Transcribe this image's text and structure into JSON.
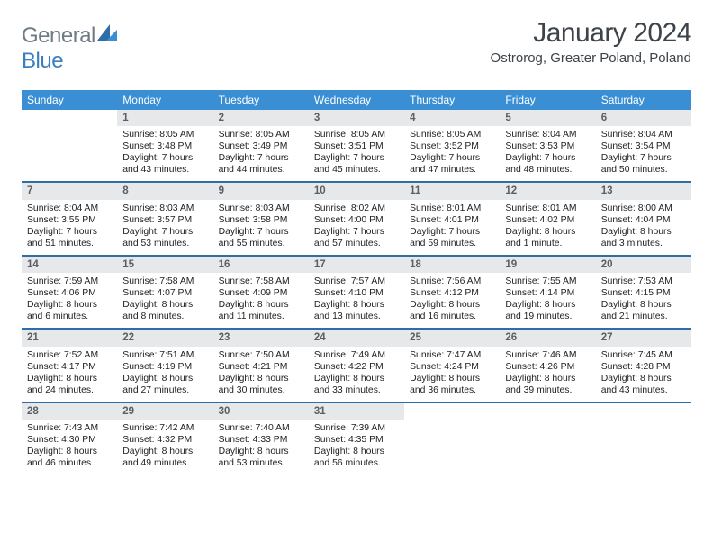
{
  "brand": {
    "part1": "General",
    "part2": "Blue"
  },
  "title": {
    "month": "January 2024",
    "location": "Ostrorog, Greater Poland, Poland"
  },
  "colors": {
    "header_bg": "#3a8fd4",
    "header_text": "#ffffff",
    "week_divider": "#2f6da8",
    "daynum_bg": "#e7e8e9",
    "daynum_text": "#5a5f63",
    "body_text": "#222222",
    "logo_gray": "#6f7b84",
    "logo_blue": "#3a7ebf"
  },
  "dow": [
    "Sunday",
    "Monday",
    "Tuesday",
    "Wednesday",
    "Thursday",
    "Friday",
    "Saturday"
  ],
  "weeks": [
    [
      {
        "n": "",
        "sr": "",
        "ss": "",
        "d1": "",
        "d2": ""
      },
      {
        "n": "1",
        "sr": "Sunrise: 8:05 AM",
        "ss": "Sunset: 3:48 PM",
        "d1": "Daylight: 7 hours",
        "d2": "and 43 minutes."
      },
      {
        "n": "2",
        "sr": "Sunrise: 8:05 AM",
        "ss": "Sunset: 3:49 PM",
        "d1": "Daylight: 7 hours",
        "d2": "and 44 minutes."
      },
      {
        "n": "3",
        "sr": "Sunrise: 8:05 AM",
        "ss": "Sunset: 3:51 PM",
        "d1": "Daylight: 7 hours",
        "d2": "and 45 minutes."
      },
      {
        "n": "4",
        "sr": "Sunrise: 8:05 AM",
        "ss": "Sunset: 3:52 PM",
        "d1": "Daylight: 7 hours",
        "d2": "and 47 minutes."
      },
      {
        "n": "5",
        "sr": "Sunrise: 8:04 AM",
        "ss": "Sunset: 3:53 PM",
        "d1": "Daylight: 7 hours",
        "d2": "and 48 minutes."
      },
      {
        "n": "6",
        "sr": "Sunrise: 8:04 AM",
        "ss": "Sunset: 3:54 PM",
        "d1": "Daylight: 7 hours",
        "d2": "and 50 minutes."
      }
    ],
    [
      {
        "n": "7",
        "sr": "Sunrise: 8:04 AM",
        "ss": "Sunset: 3:55 PM",
        "d1": "Daylight: 7 hours",
        "d2": "and 51 minutes."
      },
      {
        "n": "8",
        "sr": "Sunrise: 8:03 AM",
        "ss": "Sunset: 3:57 PM",
        "d1": "Daylight: 7 hours",
        "d2": "and 53 minutes."
      },
      {
        "n": "9",
        "sr": "Sunrise: 8:03 AM",
        "ss": "Sunset: 3:58 PM",
        "d1": "Daylight: 7 hours",
        "d2": "and 55 minutes."
      },
      {
        "n": "10",
        "sr": "Sunrise: 8:02 AM",
        "ss": "Sunset: 4:00 PM",
        "d1": "Daylight: 7 hours",
        "d2": "and 57 minutes."
      },
      {
        "n": "11",
        "sr": "Sunrise: 8:01 AM",
        "ss": "Sunset: 4:01 PM",
        "d1": "Daylight: 7 hours",
        "d2": "and 59 minutes."
      },
      {
        "n": "12",
        "sr": "Sunrise: 8:01 AM",
        "ss": "Sunset: 4:02 PM",
        "d1": "Daylight: 8 hours",
        "d2": "and 1 minute."
      },
      {
        "n": "13",
        "sr": "Sunrise: 8:00 AM",
        "ss": "Sunset: 4:04 PM",
        "d1": "Daylight: 8 hours",
        "d2": "and 3 minutes."
      }
    ],
    [
      {
        "n": "14",
        "sr": "Sunrise: 7:59 AM",
        "ss": "Sunset: 4:06 PM",
        "d1": "Daylight: 8 hours",
        "d2": "and 6 minutes."
      },
      {
        "n": "15",
        "sr": "Sunrise: 7:58 AM",
        "ss": "Sunset: 4:07 PM",
        "d1": "Daylight: 8 hours",
        "d2": "and 8 minutes."
      },
      {
        "n": "16",
        "sr": "Sunrise: 7:58 AM",
        "ss": "Sunset: 4:09 PM",
        "d1": "Daylight: 8 hours",
        "d2": "and 11 minutes."
      },
      {
        "n": "17",
        "sr": "Sunrise: 7:57 AM",
        "ss": "Sunset: 4:10 PM",
        "d1": "Daylight: 8 hours",
        "d2": "and 13 minutes."
      },
      {
        "n": "18",
        "sr": "Sunrise: 7:56 AM",
        "ss": "Sunset: 4:12 PM",
        "d1": "Daylight: 8 hours",
        "d2": "and 16 minutes."
      },
      {
        "n": "19",
        "sr": "Sunrise: 7:55 AM",
        "ss": "Sunset: 4:14 PM",
        "d1": "Daylight: 8 hours",
        "d2": "and 19 minutes."
      },
      {
        "n": "20",
        "sr": "Sunrise: 7:53 AM",
        "ss": "Sunset: 4:15 PM",
        "d1": "Daylight: 8 hours",
        "d2": "and 21 minutes."
      }
    ],
    [
      {
        "n": "21",
        "sr": "Sunrise: 7:52 AM",
        "ss": "Sunset: 4:17 PM",
        "d1": "Daylight: 8 hours",
        "d2": "and 24 minutes."
      },
      {
        "n": "22",
        "sr": "Sunrise: 7:51 AM",
        "ss": "Sunset: 4:19 PM",
        "d1": "Daylight: 8 hours",
        "d2": "and 27 minutes."
      },
      {
        "n": "23",
        "sr": "Sunrise: 7:50 AM",
        "ss": "Sunset: 4:21 PM",
        "d1": "Daylight: 8 hours",
        "d2": "and 30 minutes."
      },
      {
        "n": "24",
        "sr": "Sunrise: 7:49 AM",
        "ss": "Sunset: 4:22 PM",
        "d1": "Daylight: 8 hours",
        "d2": "and 33 minutes."
      },
      {
        "n": "25",
        "sr": "Sunrise: 7:47 AM",
        "ss": "Sunset: 4:24 PM",
        "d1": "Daylight: 8 hours",
        "d2": "and 36 minutes."
      },
      {
        "n": "26",
        "sr": "Sunrise: 7:46 AM",
        "ss": "Sunset: 4:26 PM",
        "d1": "Daylight: 8 hours",
        "d2": "and 39 minutes."
      },
      {
        "n": "27",
        "sr": "Sunrise: 7:45 AM",
        "ss": "Sunset: 4:28 PM",
        "d1": "Daylight: 8 hours",
        "d2": "and 43 minutes."
      }
    ],
    [
      {
        "n": "28",
        "sr": "Sunrise: 7:43 AM",
        "ss": "Sunset: 4:30 PM",
        "d1": "Daylight: 8 hours",
        "d2": "and 46 minutes."
      },
      {
        "n": "29",
        "sr": "Sunrise: 7:42 AM",
        "ss": "Sunset: 4:32 PM",
        "d1": "Daylight: 8 hours",
        "d2": "and 49 minutes."
      },
      {
        "n": "30",
        "sr": "Sunrise: 7:40 AM",
        "ss": "Sunset: 4:33 PM",
        "d1": "Daylight: 8 hours",
        "d2": "and 53 minutes."
      },
      {
        "n": "31",
        "sr": "Sunrise: 7:39 AM",
        "ss": "Sunset: 4:35 PM",
        "d1": "Daylight: 8 hours",
        "d2": "and 56 minutes."
      },
      {
        "n": "",
        "sr": "",
        "ss": "",
        "d1": "",
        "d2": ""
      },
      {
        "n": "",
        "sr": "",
        "ss": "",
        "d1": "",
        "d2": ""
      },
      {
        "n": "",
        "sr": "",
        "ss": "",
        "d1": "",
        "d2": ""
      }
    ]
  ]
}
